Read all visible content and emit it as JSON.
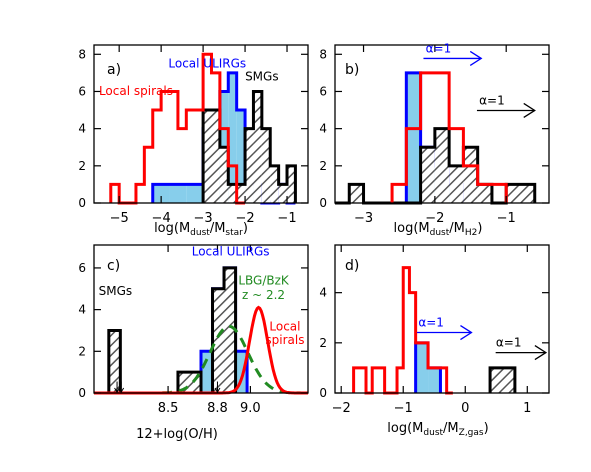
{
  "chart_data": [
    {
      "panel_label": "a)",
      "type": "bar",
      "subtype": "step-histogram",
      "xlabel": "log(M_dust/M_star)",
      "xlim": [
        -5.6,
        -0.5
      ],
      "ylim": [
        0,
        8.5
      ],
      "xticks": [
        -5,
        -4,
        -3,
        -2,
        -1
      ],
      "xtick_labels": [
        "−5",
        "−4",
        "−3",
        "−2",
        "−1"
      ],
      "yticks": [
        0,
        2,
        4,
        6,
        8
      ],
      "ytick_labels": [
        "0",
        "2",
        "4",
        "6",
        "8"
      ],
      "series": [
        {
          "name": "Local ULIRGs",
          "color": "#0000ff",
          "style": "filled",
          "fill": "#87ceeb",
          "dashed_zero": true,
          "edges": [
            -4.2,
            -3.8,
            -3.4,
            -3.0,
            -2.6,
            -2.4,
            -2.2,
            -2.0,
            -1.8,
            -1.6,
            -1.4,
            -1.2,
            -1.0,
            -0.8
          ],
          "counts": [
            1,
            1,
            1,
            4,
            6,
            7,
            5,
            1,
            1,
            0,
            0,
            1,
            0
          ]
        },
        {
          "name": "SMGs",
          "color": "#000000",
          "style": "hatched",
          "edges": [
            -3.0,
            -2.6,
            -2.4,
            -2.2,
            -2.0,
            -1.8,
            -1.6,
            -1.4,
            -1.2,
            -1.0,
            -0.8
          ],
          "counts": [
            5,
            3,
            1,
            1,
            4,
            6,
            4,
            2,
            1,
            2
          ]
        },
        {
          "name": "Local spirals",
          "color": "#ff0000",
          "style": "outline",
          "edges": [
            -5.2,
            -5.0,
            -4.8,
            -4.6,
            -4.4,
            -4.2,
            -4.0,
            -3.6,
            -3.4,
            -3.0,
            -2.8,
            -2.6,
            -2.4,
            -2.2,
            -2.0
          ],
          "counts": [
            1,
            0,
            0,
            1,
            3,
            5,
            6,
            4,
            5,
            8,
            7,
            4,
            2,
            0
          ]
        }
      ],
      "annotations": [
        {
          "text": "Local ULIRGs",
          "color": "#0000ff",
          "x": -2.9,
          "y": 7.3
        },
        {
          "text": "SMGs",
          "color": "#000000",
          "x": -1.6,
          "y": 6.6
        },
        {
          "text": "Local spirals",
          "color": "#ff0000",
          "x": -4.6,
          "y": 5.8
        }
      ]
    },
    {
      "panel_label": "b)",
      "type": "bar",
      "subtype": "step-histogram",
      "xlabel": "log(M_dust/M_H2)",
      "xlim": [
        -3.4,
        -0.4
      ],
      "ylim": [
        0,
        8.5
      ],
      "xticks": [
        -3,
        -2,
        -1
      ],
      "xtick_labels": [
        "−3",
        "−2",
        "−1"
      ],
      "yticks": [
        0,
        2,
        4,
        6,
        8
      ],
      "ytick_labels": [
        "0",
        "2",
        "4",
        "6",
        "8"
      ],
      "series": [
        {
          "name": "Local ULIRGs",
          "color": "#0000ff",
          "style": "filled",
          "fill": "#87ceeb",
          "dashed_zero": true,
          "edges": [
            -2.4,
            -2.2,
            -2.0,
            -1.8,
            -1.6
          ],
          "counts": [
            7,
            3,
            2,
            1
          ]
        },
        {
          "name": "SMGs",
          "color": "#000000",
          "style": "hatched",
          "edges": [
            -3.4,
            -3.2,
            -3.0,
            -2.8,
            -2.6,
            -2.4,
            -2.2,
            -2.0,
            -1.8,
            -1.6,
            -1.4,
            -1.2,
            -1.0,
            -0.8,
            -0.6
          ],
          "counts": [
            0,
            1,
            0,
            0,
            0,
            0,
            3,
            4,
            2,
            3,
            1,
            0,
            1,
            1
          ]
        },
        {
          "name": "Local spirals",
          "color": "#ff0000",
          "style": "outline",
          "edges": [
            -2.6,
            -2.4,
            -2.2,
            -2.0,
            -1.8,
            -1.6,
            -1.4,
            -1.2,
            -1.0
          ],
          "counts": [
            1,
            4,
            7,
            7,
            4,
            2,
            1,
            1
          ]
        }
      ],
      "annotations": [
        {
          "text": "α=1",
          "color": "#0000ff",
          "x": -1.95,
          "y": 8.1,
          "arrow": "right",
          "x_end": -1.35
        },
        {
          "text": "α=1",
          "color": "#000000",
          "x": -1.2,
          "y": 5.3,
          "arrow": "right",
          "x_end": -0.6
        }
      ]
    },
    {
      "panel_label": "c)",
      "type": "bar",
      "subtype": "step-histogram",
      "xlabel": "12+log(O/H)",
      "xlim": [
        8.05,
        9.35
      ],
      "ylim": [
        0,
        7.1
      ],
      "xticks": [
        8.5,
        8.8,
        9.0
      ],
      "xtick_labels": [
        "8.5",
        "8.8",
        "9.0"
      ],
      "yticks": [
        0,
        2,
        4,
        6
      ],
      "ytick_labels": [
        "0",
        "2",
        "4",
        "6"
      ],
      "series": [
        {
          "name": "Local ULIRGs",
          "color": "#0000ff",
          "style": "filled",
          "fill": "#87ceeb",
          "dashed_zero": true,
          "edges": [
            8.7,
            8.77,
            8.84,
            8.91,
            8.98
          ],
          "counts": [
            2,
            5,
            6,
            2
          ]
        },
        {
          "name": "SMGs",
          "color": "#000000",
          "style": "hatched",
          "edges": [
            8.14,
            8.21,
            8.28,
            8.35,
            8.42,
            8.49,
            8.56,
            8.63,
            8.7,
            8.77,
            8.84,
            8.91
          ],
          "counts": [
            3,
            0,
            0,
            0,
            0,
            0,
            1,
            1,
            0,
            5,
            6
          ]
        },
        {
          "name": "LBG/BzK z ~ 2.2",
          "color": "#228b22",
          "style": "dashed-curve",
          "gaussian": {
            "mean": 8.87,
            "sigma": 0.115,
            "peak": 3.2
          }
        },
        {
          "name": "Local spirals",
          "color": "#ff0000",
          "style": "solid-curve",
          "gaussian": {
            "mean": 9.05,
            "sigma": 0.055,
            "peak": 4.1
          }
        }
      ],
      "markers": [
        {
          "kind": "down-arrow",
          "x": 8.19,
          "y": 0.55
        },
        {
          "kind": "down-arrow",
          "x": 8.215,
          "y": 0.55
        },
        {
          "kind": "down-arrow",
          "x": 8.8,
          "y": 0.55
        }
      ],
      "annotations": [
        {
          "text": "Local ULIRGs",
          "color": "#0000ff",
          "x": 8.88,
          "y": 6.6
        },
        {
          "text": "SMGs",
          "color": "#000000",
          "x": 8.18,
          "y": 4.7
        },
        {
          "text": "LBG/BzK",
          "color": "#228b22",
          "x": 9.08,
          "y": 5.2
        },
        {
          "text": "z ~ 2.2",
          "color": "#228b22",
          "x": 9.08,
          "y": 4.5
        },
        {
          "text": "Local",
          "color": "#ff0000",
          "x": 9.21,
          "y": 3.0
        },
        {
          "text": "spirals",
          "color": "#ff0000",
          "x": 9.21,
          "y": 2.35
        }
      ]
    },
    {
      "panel_label": "d)",
      "type": "bar",
      "subtype": "step-histogram",
      "xlabel": "log(M_dust/M_Z,gas)",
      "xlim": [
        -2.1,
        1.35
      ],
      "ylim": [
        0,
        5.9
      ],
      "xticks": [
        -2,
        -1,
        0,
        1
      ],
      "xtick_labels": [
        "−2",
        "−1",
        "0",
        "1"
      ],
      "yticks": [
        0,
        2,
        4
      ],
      "ytick_labels": [
        "0",
        "2",
        "4"
      ],
      "series": [
        {
          "name": "Local ULIRGs",
          "color": "#0000ff",
          "style": "filled",
          "fill": "#87ceeb",
          "dashed_zero": true,
          "edges": [
            -0.8,
            -0.6,
            -0.4
          ],
          "counts": [
            2,
            1
          ]
        },
        {
          "name": "SMGs",
          "color": "#000000",
          "style": "hatched",
          "edges": [
            0.4,
            0.6,
            0.8
          ],
          "counts": [
            1,
            1
          ]
        },
        {
          "name": "Local spirals",
          "color": "#ff0000",
          "style": "outline",
          "edges": [
            -1.8,
            -1.7,
            -1.6,
            -1.5,
            -1.4,
            -1.3,
            -1.2,
            -1.1,
            -1.0,
            -0.9,
            -0.8,
            -0.7,
            -0.6,
            -0.5,
            -0.4,
            -0.3,
            -0.2
          ],
          "counts": [
            1,
            1,
            0,
            1,
            1,
            0,
            0,
            1,
            5,
            4,
            2,
            2,
            1,
            1,
            1,
            0
          ]
        }
      ],
      "annotations": [
        {
          "text": "α=1",
          "color": "#0000ff",
          "x": -0.55,
          "y": 2.65,
          "arrow": "right",
          "x_end": 0.1
        },
        {
          "text": "α=1",
          "color": "#000000",
          "x": 0.7,
          "y": 1.85,
          "arrow": "right",
          "x_end": 1.3
        }
      ]
    }
  ]
}
